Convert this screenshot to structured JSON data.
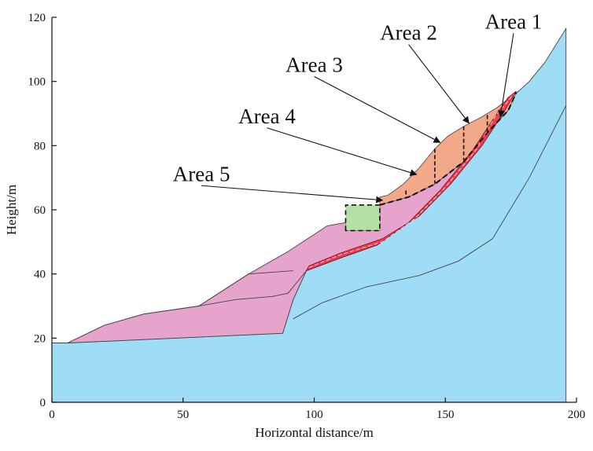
{
  "axes": {
    "xlabel": "Horizontal distance/m",
    "ylabel": "Height/m",
    "xlim": [
      0,
      200
    ],
    "ylim": [
      0,
      120
    ],
    "xticks": [
      0,
      50,
      100,
      150,
      200
    ],
    "yticks": [
      0,
      20,
      40,
      60,
      80,
      100,
      120
    ]
  },
  "colors": {
    "bedrock": "#9fdcf6",
    "deposit": "#e6a3cc",
    "area_orange": "#f2a989",
    "area_green": "#b4dfa5",
    "slip_band": "#ef3b50",
    "line": "#444444"
  },
  "regions": {
    "bedrock": [
      [
        0,
        18.5
      ],
      [
        6,
        18.5
      ],
      [
        88,
        21.5
      ],
      [
        92,
        32
      ],
      [
        97,
        41
      ],
      [
        110,
        45
      ],
      [
        124,
        49
      ],
      [
        136,
        56
      ],
      [
        148,
        66
      ],
      [
        160,
        78
      ],
      [
        168,
        88
      ],
      [
        174,
        95
      ],
      [
        178,
        97
      ],
      [
        182,
        100
      ],
      [
        188,
        106
      ],
      [
        196,
        116.5
      ],
      [
        196,
        0
      ],
      [
        0,
        0
      ]
    ],
    "deposit": [
      [
        6,
        18.5
      ],
      [
        20,
        24
      ],
      [
        35,
        27.5
      ],
      [
        56,
        30
      ],
      [
        75,
        40
      ],
      [
        90,
        47
      ],
      [
        105,
        55
      ],
      [
        112,
        56
      ],
      [
        112,
        53.5
      ],
      [
        125,
        53.5
      ],
      [
        125,
        61.5
      ],
      [
        127,
        64
      ],
      [
        150,
        74
      ],
      [
        162,
        86
      ],
      [
        170,
        92
      ],
      [
        178,
        97
      ],
      [
        174,
        95
      ],
      [
        168,
        88
      ],
      [
        160,
        78
      ],
      [
        148,
        66
      ],
      [
        136,
        56
      ],
      [
        124,
        49
      ],
      [
        110,
        45
      ],
      [
        97,
        41
      ],
      [
        92,
        32
      ],
      [
        88,
        21.5
      ]
    ],
    "area5": [
      [
        112,
        53.5
      ],
      [
        112,
        61.5
      ],
      [
        125,
        61.5
      ],
      [
        125,
        53.5
      ]
    ],
    "area_orange": [
      [
        125,
        61.5
      ],
      [
        125,
        64
      ],
      [
        128,
        64.5
      ],
      [
        134,
        68
      ],
      [
        140,
        73
      ],
      [
        146,
        79
      ],
      [
        151,
        83
      ],
      [
        157,
        86
      ],
      [
        164,
        89
      ],
      [
        170,
        92
      ],
      [
        177,
        96.5
      ],
      [
        174,
        91
      ],
      [
        166,
        84
      ],
      [
        157,
        75
      ],
      [
        146,
        68
      ],
      [
        136,
        64
      ],
      [
        125,
        61.5
      ]
    ],
    "slip_band": [
      [
        97,
        41
      ],
      [
        110,
        45
      ],
      [
        124,
        49
      ],
      [
        136,
        56
      ],
      [
        148,
        66
      ],
      [
        160,
        78
      ],
      [
        168,
        88
      ],
      [
        174,
        95
      ],
      [
        177,
        97
      ],
      [
        172,
        90
      ],
      [
        164,
        80
      ],
      [
        152,
        68
      ],
      [
        140,
        58
      ],
      [
        126,
        51
      ],
      [
        110,
        46.5
      ],
      [
        98,
        42.5
      ]
    ]
  },
  "lines": {
    "contour_1": [
      [
        6,
        18.5
      ],
      [
        20,
        24
      ],
      [
        35,
        27.5
      ],
      [
        56,
        30
      ],
      [
        70,
        32
      ],
      [
        84,
        33
      ],
      [
        90,
        34
      ],
      [
        97,
        41
      ]
    ],
    "contour_2": [
      [
        56,
        30
      ],
      [
        75,
        40
      ],
      [
        92,
        41
      ]
    ],
    "rock_interface_1": [
      [
        92,
        26
      ],
      [
        103,
        31
      ],
      [
        120,
        36
      ],
      [
        140,
        39.5
      ],
      [
        155,
        44
      ],
      [
        168,
        51
      ],
      [
        182,
        70
      ],
      [
        196,
        92.5
      ]
    ],
    "slip_center": [
      [
        98,
        42
      ],
      [
        110,
        46
      ],
      [
        126,
        50
      ],
      [
        138,
        57
      ],
      [
        150,
        67
      ],
      [
        162,
        79
      ],
      [
        169,
        89
      ],
      [
        176,
        96
      ]
    ],
    "slip_boundary_dashed": [
      [
        125,
        61.5
      ],
      [
        136,
        64
      ],
      [
        146,
        68
      ],
      [
        157,
        75
      ],
      [
        166,
        84
      ],
      [
        174,
        91
      ],
      [
        177,
        96.5
      ]
    ],
    "area_dividers": [
      [
        [
          135,
          66
        ],
        [
          135,
          64
        ]
      ],
      [
        [
          146,
          79
        ],
        [
          146,
          68.2
        ]
      ],
      [
        [
          157,
          86
        ],
        [
          157,
          75.5
        ]
      ],
      [
        [
          166,
          89.5
        ],
        [
          166,
          84
        ]
      ]
    ]
  },
  "annotations": [
    {
      "label": "Area 1",
      "text_at": [
        176,
        116.5
      ],
      "arrow_to": [
        171,
        89
      ]
    },
    {
      "label": "Area 2",
      "text_at": [
        136,
        113
      ],
      "arrow_to": [
        159,
        87
      ]
    },
    {
      "label": "Area 3",
      "text_at": [
        100,
        103
      ],
      "arrow_to": [
        148,
        81
      ]
    },
    {
      "label": "Area 4",
      "text_at": [
        82,
        87
      ],
      "arrow_to": [
        139,
        71
      ]
    },
    {
      "label": "Area 5",
      "text_at": [
        57,
        69
      ],
      "arrow_to": [
        126,
        63
      ]
    }
  ]
}
